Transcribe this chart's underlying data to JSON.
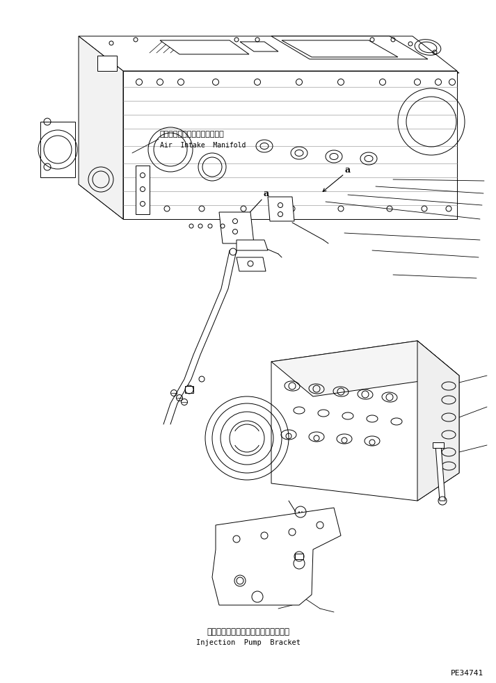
{
  "bg_color": "#ffffff",
  "line_color": "#000000",
  "fig_width": 7.13,
  "fig_height": 9.82,
  "dpi": 100,
  "label_air_jp": "エアーインテークマニホールド",
  "label_air_en": "Air  Intake  Manifold",
  "label_inj_jp": "インジェクションボンプブラッケット",
  "label_inj_en": "Injection  Pump  Bracket",
  "label_code": "PE34741",
  "label_a": "a"
}
